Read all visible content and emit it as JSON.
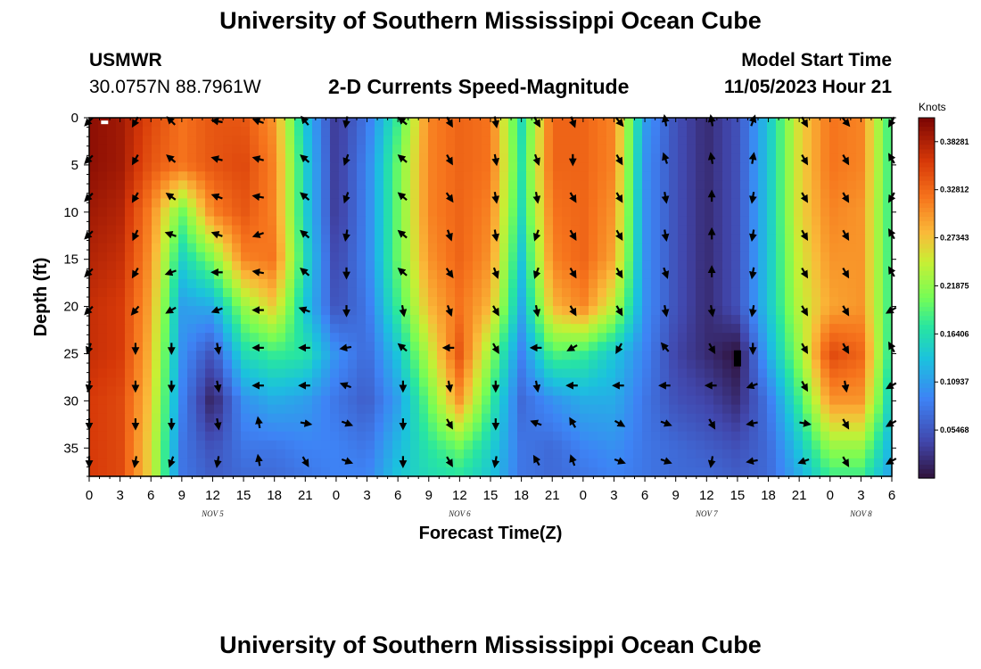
{
  "page": {
    "title_top": "University of Southern Mississippi Ocean Cube",
    "title_bottom": "University of Southern Mississippi Ocean Cube",
    "station_name": "USMWR",
    "station_coords": "30.0757N  88.7961W",
    "plot_title": "2-D Currents Speed-Magnitude",
    "model_start_label": "Model Start Time",
    "model_start_value": "11/05/2023 Hour 21"
  },
  "chart_data": {
    "type": "heatmap",
    "title": "2-D Currents Speed-Magnitude",
    "xlabel": "Forecast Time(Z)",
    "ylabel": "Depth (ft)",
    "x_start_hour": 0,
    "x_end_hour": 78,
    "x_ticks": [
      {
        "hour": 0,
        "label": "0"
      },
      {
        "hour": 3,
        "label": "3"
      },
      {
        "hour": 6,
        "label": "6"
      },
      {
        "hour": 9,
        "label": "9"
      },
      {
        "hour": 12,
        "label": "12"
      },
      {
        "hour": 15,
        "label": "15"
      },
      {
        "hour": 18,
        "label": "18"
      },
      {
        "hour": 21,
        "label": "21"
      },
      {
        "hour": 24,
        "label": "0"
      },
      {
        "hour": 27,
        "label": "3"
      },
      {
        "hour": 30,
        "label": "6"
      },
      {
        "hour": 33,
        "label": "9"
      },
      {
        "hour": 36,
        "label": "12"
      },
      {
        "hour": 39,
        "label": "15"
      },
      {
        "hour": 42,
        "label": "18"
      },
      {
        "hour": 45,
        "label": "21"
      },
      {
        "hour": 48,
        "label": "0"
      },
      {
        "hour": 51,
        "label": "3"
      },
      {
        "hour": 54,
        "label": "6"
      },
      {
        "hour": 57,
        "label": "9"
      },
      {
        "hour": 60,
        "label": "12"
      },
      {
        "hour": 63,
        "label": "15"
      },
      {
        "hour": 66,
        "label": "18"
      },
      {
        "hour": 69,
        "label": "21"
      },
      {
        "hour": 72,
        "label": "0"
      },
      {
        "hour": 75,
        "label": "3"
      },
      {
        "hour": 78,
        "label": "6"
      }
    ],
    "date_labels": [
      {
        "hour": 12,
        "label": "NOV 5"
      },
      {
        "hour": 36,
        "label": "NOV 6"
      },
      {
        "hour": 60,
        "label": "NOV 7"
      },
      {
        "hour": 75,
        "label": "NOV 8"
      }
    ],
    "y_range": [
      0,
      38
    ],
    "y_ticks": [
      0,
      5,
      10,
      15,
      20,
      25,
      30,
      35
    ],
    "colorbar": {
      "unit": "Knots",
      "min": 0.0,
      "max": 0.41,
      "tick_labels": [
        "0.38281",
        "0.32812",
        "0.27343",
        "0.21875",
        "0.16406",
        "0.10937",
        "0.05468"
      ],
      "tick_values": [
        0.38281,
        0.32812,
        0.27343,
        0.21875,
        0.16406,
        0.10937,
        0.05468
      ]
    },
    "speed_grid": {
      "depths_ft": [
        0,
        5,
        10,
        15,
        20,
        25,
        30,
        35,
        38
      ],
      "hours": [
        0,
        3,
        6,
        9,
        12,
        15,
        18,
        21,
        24,
        27,
        30,
        33,
        36,
        39,
        42,
        45,
        48,
        51,
        54,
        57,
        60,
        63,
        66,
        69,
        72,
        75,
        78
      ],
      "values": [
        [
          0.4,
          0.39,
          0.35,
          0.32,
          0.34,
          0.34,
          0.3,
          0.14,
          0.03,
          0.08,
          0.18,
          0.31,
          0.33,
          0.32,
          0.16,
          0.33,
          0.33,
          0.31,
          0.11,
          0.05,
          0.02,
          0.05,
          0.14,
          0.26,
          0.32,
          0.31,
          0.17
        ],
        [
          0.4,
          0.39,
          0.34,
          0.32,
          0.34,
          0.35,
          0.31,
          0.15,
          0.03,
          0.09,
          0.2,
          0.31,
          0.33,
          0.32,
          0.17,
          0.33,
          0.33,
          0.31,
          0.1,
          0.05,
          0.02,
          0.05,
          0.14,
          0.26,
          0.32,
          0.31,
          0.17
        ],
        [
          0.39,
          0.38,
          0.31,
          0.2,
          0.31,
          0.34,
          0.31,
          0.15,
          0.03,
          0.09,
          0.2,
          0.31,
          0.33,
          0.31,
          0.16,
          0.32,
          0.33,
          0.3,
          0.1,
          0.05,
          0.02,
          0.05,
          0.14,
          0.26,
          0.31,
          0.3,
          0.17
        ],
        [
          0.38,
          0.37,
          0.3,
          0.15,
          0.21,
          0.31,
          0.32,
          0.16,
          0.04,
          0.09,
          0.2,
          0.3,
          0.33,
          0.3,
          0.14,
          0.31,
          0.33,
          0.29,
          0.1,
          0.05,
          0.02,
          0.05,
          0.14,
          0.25,
          0.3,
          0.3,
          0.17
        ],
        [
          0.37,
          0.36,
          0.29,
          0.11,
          0.12,
          0.22,
          0.27,
          0.14,
          0.05,
          0.08,
          0.18,
          0.28,
          0.32,
          0.28,
          0.12,
          0.28,
          0.31,
          0.24,
          0.1,
          0.05,
          0.02,
          0.05,
          0.14,
          0.24,
          0.29,
          0.3,
          0.17
        ],
        [
          0.37,
          0.36,
          0.28,
          0.1,
          0.05,
          0.16,
          0.18,
          0.17,
          0.1,
          0.07,
          0.14,
          0.24,
          0.34,
          0.22,
          0.09,
          0.19,
          0.18,
          0.14,
          0.09,
          0.04,
          0.02,
          0.0,
          0.12,
          0.22,
          0.35,
          0.33,
          0.16
        ],
        [
          0.36,
          0.35,
          0.27,
          0.09,
          0.01,
          0.1,
          0.12,
          0.11,
          0.08,
          0.06,
          0.11,
          0.2,
          0.3,
          0.18,
          0.07,
          0.1,
          0.12,
          0.12,
          0.08,
          0.05,
          0.04,
          0.02,
          0.08,
          0.18,
          0.3,
          0.3,
          0.14
        ],
        [
          0.36,
          0.35,
          0.26,
          0.08,
          0.05,
          0.08,
          0.08,
          0.09,
          0.09,
          0.08,
          0.13,
          0.17,
          0.2,
          0.15,
          0.08,
          0.07,
          0.09,
          0.1,
          0.08,
          0.07,
          0.06,
          0.05,
          0.07,
          0.14,
          0.22,
          0.22,
          0.12
        ],
        [
          0.36,
          0.35,
          0.26,
          0.08,
          0.06,
          0.07,
          0.07,
          0.08,
          0.09,
          0.09,
          0.14,
          0.16,
          0.17,
          0.14,
          0.08,
          0.07,
          0.08,
          0.09,
          0.08,
          0.07,
          0.07,
          0.06,
          0.07,
          0.12,
          0.18,
          0.18,
          0.11
        ]
      ]
    },
    "vectors": {
      "depths_ft": [
        0,
        4,
        8,
        12,
        16,
        20,
        24,
        28,
        32,
        36
      ],
      "hours": [
        0,
        4.5,
        8,
        12.5,
        16.5,
        21,
        25,
        30.5,
        35,
        39.5,
        43.5,
        47,
        51.5,
        56,
        60.5,
        64.5,
        69.5,
        73.5,
        78
      ],
      "angles_deg": [
        [
          135,
          120,
          225,
          190,
          200,
          230,
          100,
          220,
          60,
          80,
          60,
          70,
          50,
          260,
          260,
          290,
          60,
          50,
          120
        ],
        [
          135,
          120,
          220,
          195,
          195,
          220,
          110,
          220,
          60,
          80,
          70,
          90,
          60,
          250,
          260,
          280,
          60,
          60,
          240
        ],
        [
          135,
          120,
          215,
          200,
          190,
          220,
          110,
          220,
          55,
          80,
          80,
          60,
          60,
          80,
          270,
          100,
          60,
          60,
          120
        ],
        [
          135,
          115,
          200,
          200,
          160,
          220,
          100,
          220,
          70,
          80,
          110,
          60,
          60,
          80,
          270,
          100,
          60,
          60,
          240
        ],
        [
          135,
          120,
          160,
          180,
          190,
          220,
          90,
          220,
          55,
          70,
          110,
          60,
          60,
          70,
          270,
          100,
          60,
          60,
          240
        ],
        [
          135,
          130,
          150,
          160,
          180,
          200,
          90,
          80,
          70,
          60,
          80,
          60,
          60,
          80,
          80,
          100,
          60,
          60,
          150
        ],
        [
          110,
          90,
          90,
          80,
          180,
          180,
          170,
          220,
          180,
          60,
          180,
          150,
          120,
          230,
          60,
          90,
          60,
          60,
          240
        ],
        [
          100,
          90,
          90,
          80,
          180,
          180,
          200,
          90,
          80,
          90,
          80,
          180,
          180,
          180,
          180,
          160,
          60,
          80,
          150
        ],
        [
          90,
          90,
          90,
          80,
          260,
          10,
          20,
          90,
          60,
          90,
          200,
          240,
          30,
          20,
          60,
          170,
          10,
          60,
          150
        ],
        [
          90,
          100,
          110,
          100,
          260,
          60,
          20,
          90,
          60,
          100,
          240,
          250,
          20,
          20,
          100,
          170,
          160,
          60,
          150
        ]
      ]
    },
    "annotations": [
      {
        "text": "",
        "kind": "white-marker",
        "hour": 1.5,
        "depth_ft": 0.3
      },
      {
        "text": "",
        "kind": "black-bar",
        "hour": 63,
        "depth_ft": 25.5
      }
    ]
  }
}
